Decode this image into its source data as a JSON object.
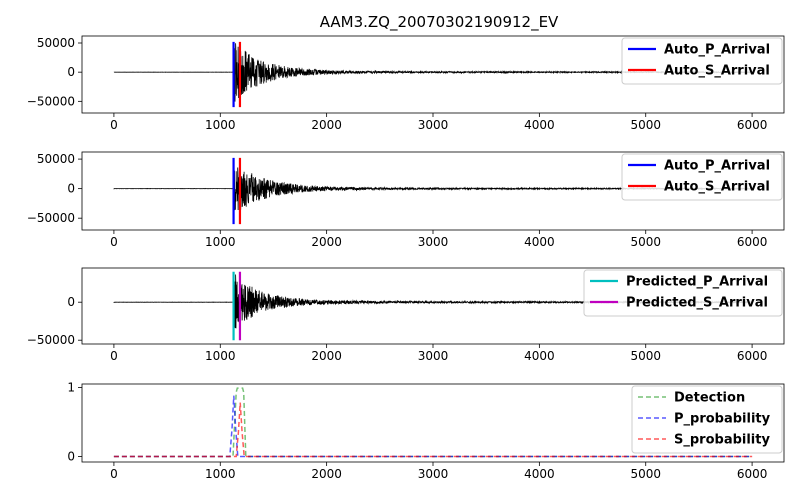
{
  "title": "AAM3.ZQ_20070302190912_EV",
  "chart_data": [
    {
      "type": "line",
      "panel": "waveform-1",
      "xlim": [
        -300,
        6300
      ],
      "ylim": [
        -70000,
        62000
      ],
      "xticks": [
        0,
        1000,
        2000,
        3000,
        4000,
        5000,
        6000
      ],
      "yticks": [
        -50000,
        0,
        50000
      ],
      "waveform": {
        "color": "#000000",
        "onset": 1130,
        "peak_amp": 50000,
        "decay": 260
      },
      "vlines": [
        {
          "name": "Auto_P_Arrival",
          "x": 1125,
          "ymin": -60000,
          "ymax": 52000,
          "color": "#0000ff"
        },
        {
          "name": "Auto_S_Arrival",
          "x": 1185,
          "ymin": -60000,
          "ymax": 52000,
          "color": "#ff0000"
        }
      ],
      "legend": {
        "position": "upper-right",
        "entries": [
          "Auto_P_Arrival",
          "Auto_S_Arrival"
        ]
      }
    },
    {
      "type": "line",
      "panel": "waveform-2",
      "xlim": [
        -300,
        6300
      ],
      "ylim": [
        -70000,
        62000
      ],
      "xticks": [
        0,
        1000,
        2000,
        3000,
        4000,
        5000,
        6000
      ],
      "yticks": [
        -50000,
        0,
        50000
      ],
      "waveform": {
        "color": "#000000",
        "onset": 1130,
        "peak_amp": 42000,
        "decay": 280
      },
      "vlines": [
        {
          "name": "Auto_P_Arrival",
          "x": 1125,
          "ymin": -60000,
          "ymax": 52000,
          "color": "#0000ff"
        },
        {
          "name": "Auto_S_Arrival",
          "x": 1185,
          "ymin": -60000,
          "ymax": 52000,
          "color": "#ff0000"
        }
      ],
      "legend": {
        "position": "upper-right",
        "entries": [
          "Auto_P_Arrival",
          "Auto_S_Arrival"
        ]
      }
    },
    {
      "type": "line",
      "panel": "waveform-3",
      "xlim": [
        -300,
        6300
      ],
      "ylim": [
        -55000,
        45000
      ],
      "xticks": [
        0,
        1000,
        2000,
        3000,
        4000,
        5000,
        6000
      ],
      "yticks": [
        -50000,
        0
      ],
      "waveform": {
        "color": "#000000",
        "onset": 1130,
        "peak_amp": 36000,
        "decay": 240
      },
      "vlines": [
        {
          "name": "Predicted_P_Arrival",
          "x": 1125,
          "ymin": -50000,
          "ymax": 40000,
          "color": "#00bfbf"
        },
        {
          "name": "Predicted_S_Arrival",
          "x": 1185,
          "ymin": -50000,
          "ymax": 40000,
          "color": "#bf00bf"
        }
      ],
      "legend": {
        "position": "upper-right",
        "entries": [
          "Predicted_P_Arrival",
          "Predicted_S_Arrival"
        ]
      }
    },
    {
      "type": "line",
      "panel": "probabilities",
      "xlim": [
        -300,
        6300
      ],
      "ylim": [
        -0.08,
        1.05
      ],
      "xticks": [
        0,
        1000,
        2000,
        3000,
        4000,
        5000,
        6000
      ],
      "yticks": [
        0,
        1
      ],
      "series": [
        {
          "name": "Detection",
          "color": "#2ca02c",
          "dash": "dashed",
          "x": [
            0,
            1120,
            1150,
            1160,
            1210,
            1220,
            1240,
            6000
          ],
          "y": [
            0,
            0,
            0.93,
            0.99,
            0.99,
            0.93,
            0,
            0
          ]
        },
        {
          "name": "P_probability",
          "color": "#0000ff",
          "dash": "dashed",
          "x": [
            0,
            1090,
            1110,
            1127,
            1145,
            1165,
            6000
          ],
          "y": [
            0,
            0,
            0.4,
            0.88,
            0.4,
            0,
            0
          ]
        },
        {
          "name": "S_probability",
          "color": "#ff0000",
          "dash": "dashed",
          "x": [
            0,
            1150,
            1170,
            1187,
            1205,
            1225,
            6000
          ],
          "y": [
            0,
            0,
            0.35,
            0.78,
            0.35,
            0,
            0
          ]
        }
      ],
      "legend": {
        "position": "upper-right",
        "entries": [
          "Detection",
          "P_probability",
          "S_probability"
        ]
      }
    }
  ]
}
